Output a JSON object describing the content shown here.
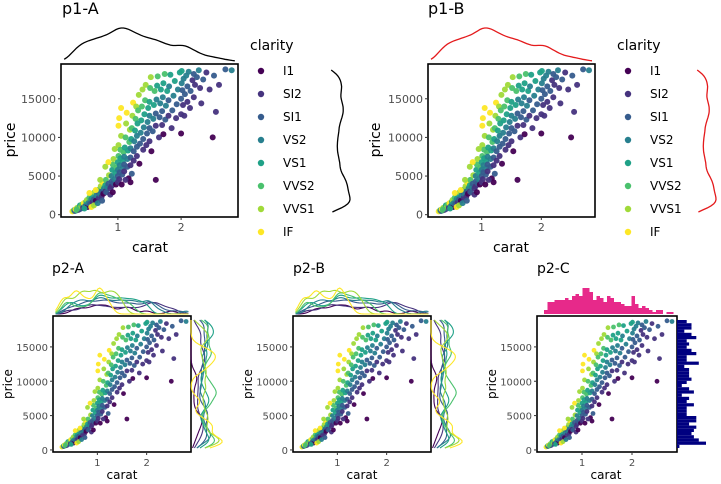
{
  "chart_data": [
    {
      "id": "p1a",
      "type": "scatter",
      "title": "p1-A",
      "xlabel": "carat",
      "ylabel": "price",
      "xticks": [
        1,
        2
      ],
      "yticks": [
        0,
        5000,
        10000,
        15000
      ],
      "xlim": [
        0.1,
        2.9
      ],
      "ylim": [
        -300,
        19500
      ],
      "legend": {
        "title": "clarity",
        "position": "right"
      },
      "marginal": {
        "style": "line",
        "color": "#000000"
      }
    },
    {
      "id": "p1b",
      "type": "scatter",
      "title": "p1-B",
      "xlabel": "carat",
      "ylabel": "price",
      "xticks": [
        1,
        2
      ],
      "yticks": [
        0,
        5000,
        10000,
        15000
      ],
      "xlim": [
        0.1,
        2.9
      ],
      "ylim": [
        -300,
        19500
      ],
      "legend": {
        "title": "clarity",
        "position": "right"
      },
      "marginal": {
        "style": "line",
        "color": "#e41a1c"
      }
    },
    {
      "id": "p2a",
      "type": "scatter",
      "title": "p2-A",
      "xlabel": "carat",
      "ylabel": "price",
      "xticks": [
        1,
        2
      ],
      "yticks": [
        0,
        5000,
        10000,
        15000
      ],
      "xlim": [
        0.1,
        2.9
      ],
      "ylim": [
        -300,
        19500
      ],
      "marginal": {
        "style": "grouped-density",
        "color": ""
      }
    },
    {
      "id": "p2b",
      "type": "scatter",
      "title": "p2-B",
      "xlabel": "carat",
      "ylabel": "price",
      "xticks": [
        1,
        2
      ],
      "yticks": [
        0,
        5000,
        10000,
        15000
      ],
      "xlim": [
        0.1,
        2.9
      ],
      "ylim": [
        -300,
        19500
      ],
      "marginal": {
        "style": "grouped-density",
        "color": ""
      }
    },
    {
      "id": "p2c",
      "type": "scatter",
      "title": "p2-C",
      "xlabel": "carat",
      "ylabel": "price",
      "xticks": [
        1,
        2
      ],
      "yticks": [
        0,
        5000,
        10000,
        15000
      ],
      "xlim": [
        0.1,
        2.9
      ],
      "ylim": [
        -300,
        19500
      ],
      "marginal": {
        "style": "histogram",
        "color": "#e7298a",
        "color_y": "#000080"
      }
    }
  ],
  "clarity_levels": [
    {
      "name": "I1",
      "color": "#440154"
    },
    {
      "name": "SI2",
      "color": "#46337E"
    },
    {
      "name": "SI1",
      "color": "#365C8D"
    },
    {
      "name": "VS2",
      "color": "#277F8E"
    },
    {
      "name": "VS1",
      "color": "#1FA187"
    },
    {
      "name": "VVS2",
      "color": "#4AC16D"
    },
    {
      "name": "VVS1",
      "color": "#A0DA39"
    },
    {
      "name": "IF",
      "color": "#FDE725"
    }
  ],
  "points": [
    [
      0.28,
      420,
      7
    ],
    [
      0.3,
      520,
      6
    ],
    [
      0.31,
      610,
      4
    ],
    [
      0.32,
      480,
      2
    ],
    [
      0.33,
      700,
      7
    ],
    [
      0.35,
      560,
      5
    ],
    [
      0.36,
      900,
      6
    ],
    [
      0.38,
      650,
      1
    ],
    [
      0.4,
      900,
      3
    ],
    [
      0.4,
      1200,
      4
    ],
    [
      0.41,
      780,
      2
    ],
    [
      0.42,
      1050,
      6
    ],
    [
      0.43,
      1300,
      5
    ],
    [
      0.45,
      900,
      1
    ],
    [
      0.46,
      1500,
      7
    ],
    [
      0.48,
      1100,
      3
    ],
    [
      0.5,
      1300,
      2
    ],
    [
      0.5,
      1700,
      4
    ],
    [
      0.51,
      1900,
      6
    ],
    [
      0.52,
      1000,
      0
    ],
    [
      0.53,
      1500,
      3
    ],
    [
      0.55,
      2200,
      5
    ],
    [
      0.56,
      1400,
      2
    ],
    [
      0.58,
      2000,
      3
    ],
    [
      0.6,
      1600,
      1
    ],
    [
      0.6,
      2400,
      4
    ],
    [
      0.62,
      2000,
      2
    ],
    [
      0.63,
      2900,
      6
    ],
    [
      0.65,
      1800,
      0
    ],
    [
      0.66,
      2500,
      3
    ],
    [
      0.68,
      3100,
      5
    ],
    [
      0.7,
      2200,
      1
    ],
    [
      0.7,
      2800,
      2
    ],
    [
      0.71,
      3300,
      4
    ],
    [
      0.72,
      2600,
      3
    ],
    [
      0.73,
      3700,
      6
    ],
    [
      0.74,
      2300,
      1
    ],
    [
      0.75,
      3000,
      2
    ],
    [
      0.76,
      4200,
      7
    ],
    [
      0.77,
      2700,
      0
    ],
    [
      0.78,
      3400,
      3
    ],
    [
      0.8,
      3000,
      1
    ],
    [
      0.8,
      3800,
      4
    ],
    [
      0.81,
      4500,
      5
    ],
    [
      0.82,
      2900,
      2
    ],
    [
      0.83,
      3600,
      3
    ],
    [
      0.85,
      4000,
      2
    ],
    [
      0.86,
      5100,
      6
    ],
    [
      0.88,
      3400,
      1
    ],
    [
      0.9,
      3700,
      1
    ],
    [
      0.9,
      4300,
      2
    ],
    [
      0.9,
      5000,
      3
    ],
    [
      0.91,
      5800,
      4
    ],
    [
      0.92,
      6500,
      5
    ],
    [
      0.93,
      7200,
      6
    ],
    [
      0.93,
      4100,
      2
    ],
    [
      0.95,
      4600,
      3
    ],
    [
      0.96,
      5400,
      4
    ],
    [
      0.97,
      3900,
      0
    ],
    [
      0.98,
      6100,
      5
    ],
    [
      1.0,
      4200,
      1
    ],
    [
      1.0,
      5000,
      2
    ],
    [
      1.0,
      5800,
      3
    ],
    [
      1.0,
      6800,
      4
    ],
    [
      1.01,
      7600,
      5
    ],
    [
      1.01,
      9000,
      6
    ],
    [
      1.01,
      11500,
      7
    ],
    [
      1.02,
      12500,
      7
    ],
    [
      1.02,
      4600,
      1
    ],
    [
      1.03,
      5500,
      2
    ],
    [
      1.03,
      6400,
      3
    ],
    [
      1.04,
      7300,
      4
    ],
    [
      1.04,
      8400,
      5
    ],
    [
      1.05,
      10200,
      6
    ],
    [
      1.06,
      3900,
      0
    ],
    [
      1.07,
      5200,
      2
    ],
    [
      1.08,
      6100,
      3
    ],
    [
      1.08,
      7000,
      4
    ],
    [
      1.09,
      8100,
      5
    ],
    [
      1.1,
      5600,
      1
    ],
    [
      1.1,
      6500,
      2
    ],
    [
      1.1,
      7500,
      3
    ],
    [
      1.11,
      8700,
      4
    ],
    [
      1.12,
      10000,
      5
    ],
    [
      1.13,
      11800,
      6
    ],
    [
      1.14,
      13200,
      7
    ],
    [
      1.15,
      6200,
      2
    ],
    [
      1.15,
      7200,
      3
    ],
    [
      1.16,
      8300,
      4
    ],
    [
      1.17,
      4700,
      0
    ],
    [
      1.18,
      9400,
      5
    ],
    [
      1.19,
      11000,
      6
    ],
    [
      1.2,
      6400,
      1
    ],
    [
      1.2,
      7400,
      2
    ],
    [
      1.2,
      8600,
      3
    ],
    [
      1.21,
      9800,
      4
    ],
    [
      1.22,
      11200,
      5
    ],
    [
      1.23,
      12800,
      6
    ],
    [
      1.24,
      14500,
      7
    ],
    [
      1.25,
      7000,
      1
    ],
    [
      1.25,
      8200,
      2
    ],
    [
      1.26,
      9500,
      3
    ],
    [
      1.27,
      10900,
      4
    ],
    [
      1.28,
      12400,
      5
    ],
    [
      1.29,
      14000,
      6
    ],
    [
      1.3,
      7600,
      1
    ],
    [
      1.3,
      8800,
      2
    ],
    [
      1.3,
      10200,
      3
    ],
    [
      1.31,
      11800,
      4
    ],
    [
      1.32,
      13500,
      5
    ],
    [
      1.33,
      15500,
      6
    ],
    [
      1.34,
      6600,
      0
    ],
    [
      1.35,
      9200,
      2
    ],
    [
      1.36,
      10600,
      3
    ],
    [
      1.37,
      12200,
      4
    ],
    [
      1.38,
      14000,
      5
    ],
    [
      1.39,
      16200,
      6
    ],
    [
      1.4,
      8400,
      1
    ],
    [
      1.4,
      9800,
      2
    ],
    [
      1.41,
      11300,
      3
    ],
    [
      1.42,
      13000,
      4
    ],
    [
      1.43,
      14800,
      5
    ],
    [
      1.44,
      16800,
      6
    ],
    [
      1.45,
      9000,
      1
    ],
    [
      1.46,
      10500,
      2
    ],
    [
      1.47,
      12000,
      3
    ],
    [
      1.48,
      13800,
      4
    ],
    [
      1.5,
      9500,
      1
    ],
    [
      1.5,
      11200,
      2
    ],
    [
      1.5,
      12800,
      3
    ],
    [
      1.5,
      14600,
      4
    ],
    [
      1.51,
      16400,
      5
    ],
    [
      1.52,
      17800,
      6
    ],
    [
      1.53,
      8200,
      0
    ],
    [
      1.55,
      10800,
      2
    ],
    [
      1.56,
      12400,
      3
    ],
    [
      1.57,
      14200,
      4
    ],
    [
      1.58,
      16000,
      5
    ],
    [
      1.6,
      11500,
      1
    ],
    [
      1.6,
      13100,
      2
    ],
    [
      1.61,
      14900,
      3
    ],
    [
      1.62,
      16700,
      4
    ],
    [
      1.63,
      17900,
      5
    ],
    [
      1.65,
      10000,
      1
    ],
    [
      1.66,
      12600,
      2
    ],
    [
      1.67,
      14400,
      3
    ],
    [
      1.68,
      16200,
      4
    ],
    [
      1.7,
      11600,
      1
    ],
    [
      1.7,
      13400,
      2
    ],
    [
      1.71,
      15200,
      3
    ],
    [
      1.72,
      17000,
      4
    ],
    [
      1.74,
      18200,
      5
    ],
    [
      1.75,
      12300,
      2
    ],
    [
      1.76,
      14100,
      3
    ],
    [
      1.78,
      16000,
      4
    ],
    [
      1.8,
      12800,
      1
    ],
    [
      1.8,
      14800,
      2
    ],
    [
      1.81,
      16600,
      3
    ],
    [
      1.83,
      18100,
      4
    ],
    [
      1.85,
      11200,
      1
    ],
    [
      1.86,
      13500,
      2
    ],
    [
      1.88,
      15400,
      3
    ],
    [
      1.9,
      17300,
      4
    ],
    [
      1.92,
      12500,
      1
    ],
    [
      1.93,
      14300,
      2
    ],
    [
      1.95,
      16200,
      3
    ],
    [
      1.98,
      18400,
      4
    ],
    [
      2.0,
      10500,
      0
    ],
    [
      2.0,
      13000,
      1
    ],
    [
      2.0,
      15000,
      2
    ],
    [
      2.01,
      17000,
      3
    ],
    [
      2.01,
      18600,
      4
    ],
    [
      2.02,
      16100,
      2
    ],
    [
      2.03,
      14200,
      1
    ],
    [
      2.04,
      17600,
      3
    ],
    [
      2.05,
      12800,
      1
    ],
    [
      2.06,
      15600,
      2
    ],
    [
      2.08,
      18000,
      3
    ],
    [
      2.1,
      14600,
      1
    ],
    [
      2.1,
      16600,
      2
    ],
    [
      2.12,
      18500,
      3
    ],
    [
      2.14,
      13800,
      1
    ],
    [
      2.15,
      16000,
      2
    ],
    [
      2.18,
      17400,
      1
    ],
    [
      2.2,
      15200,
      1
    ],
    [
      2.2,
      18200,
      2
    ],
    [
      2.22,
      16800,
      1
    ],
    [
      2.25,
      17800,
      2
    ],
    [
      2.28,
      18700,
      3
    ],
    [
      2.3,
      16400,
      1
    ],
    [
      2.32,
      14400,
      1
    ],
    [
      2.35,
      17500,
      2
    ],
    [
      2.4,
      18400,
      1
    ],
    [
      2.45,
      16200,
      1
    ],
    [
      2.5,
      10000,
      0
    ],
    [
      2.52,
      18000,
      2
    ],
    [
      2.55,
      13300,
      1
    ],
    [
      2.6,
      16800,
      1
    ],
    [
      2.7,
      18800,
      2
    ],
    [
      2.8,
      18700,
      3
    ],
    [
      1.6,
      4500,
      0
    ],
    [
      1.72,
      10400,
      0
    ],
    [
      1.2,
      4200,
      0
    ],
    [
      0.65,
      3200,
      7
    ],
    [
      0.55,
      2800,
      7
    ],
    [
      0.72,
      4500,
      6
    ],
    [
      0.85,
      6800,
      7
    ],
    [
      0.8,
      6200,
      6
    ],
    [
      1.05,
      13800,
      7
    ],
    [
      0.95,
      8500,
      6
    ],
    [
      0.58,
      1000,
      7
    ],
    [
      0.62,
      1200,
      6
    ],
    [
      0.35,
      700,
      5
    ],
    [
      0.47,
      800,
      4
    ],
    [
      0.68,
      1500,
      3
    ],
    [
      0.75,
      1800,
      2
    ],
    [
      0.88,
      2600,
      1
    ],
    [
      0.92,
      2900,
      0
    ],
    [
      1.12,
      4500,
      1
    ],
    [
      1.22,
      5300,
      2
    ]
  ]
}
